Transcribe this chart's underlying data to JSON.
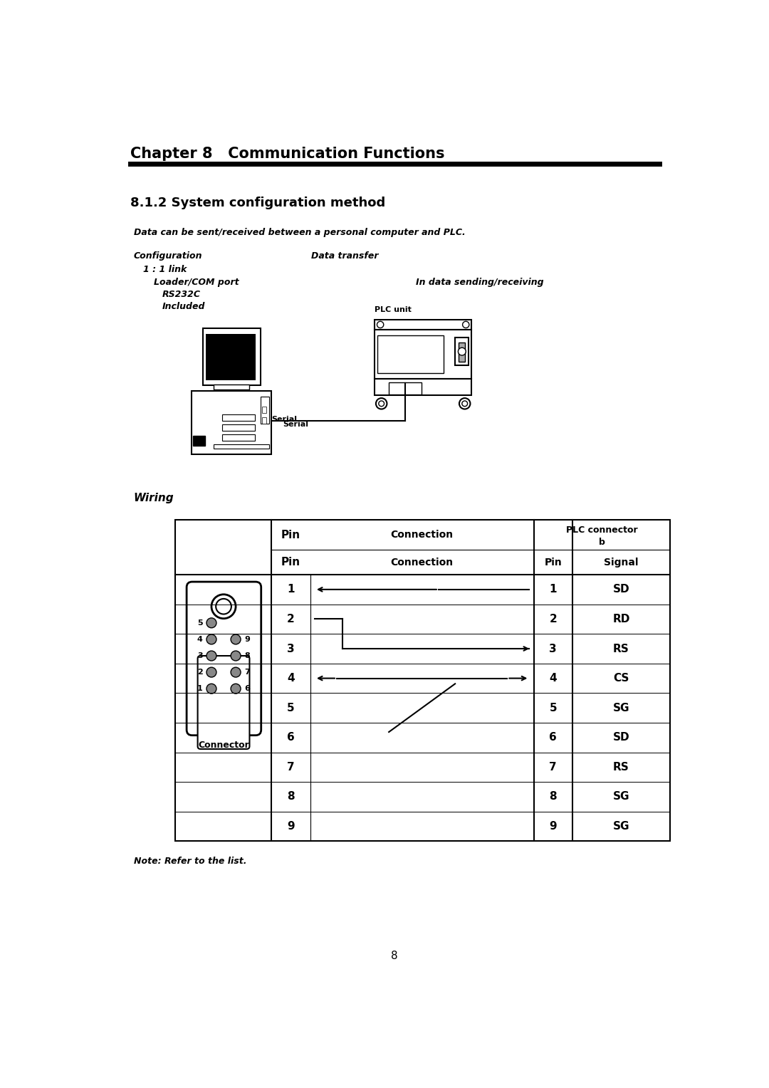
{
  "title": "Chapter 8   Communication Functions",
  "subtitle": "8.1.2 System configuration method",
  "bg_color": "#ffffff",
  "text_color": "#000000",
  "page_number": "8",
  "wiring_label": "Wiring",
  "diagram_label_pc": "Serial",
  "diagram_label_plc": "PLC unit",
  "connector_label": "Connector",
  "note_text": "Note: Refer to the list.",
  "table_rows": [
    {
      "pin_l": "1",
      "pin_r": "1",
      "sig_r": "SD"
    },
    {
      "pin_l": "2",
      "pin_r": "2",
      "sig_r": "RD"
    },
    {
      "pin_l": "3",
      "pin_r": "3",
      "sig_r": "RS"
    },
    {
      "pin_l": "4",
      "pin_r": "4",
      "sig_r": "CS"
    },
    {
      "pin_l": "5",
      "pin_r": "5",
      "sig_r": "SG"
    },
    {
      "pin_l": "6",
      "pin_r": "6",
      "sig_r": "SD"
    },
    {
      "pin_l": "7",
      "pin_r": "7",
      "sig_r": "RS"
    },
    {
      "pin_l": "8",
      "pin_r": "8",
      "sig_r": "SG"
    },
    {
      "pin_l": "9",
      "pin_r": "9",
      "sig_r": "SG"
    }
  ]
}
